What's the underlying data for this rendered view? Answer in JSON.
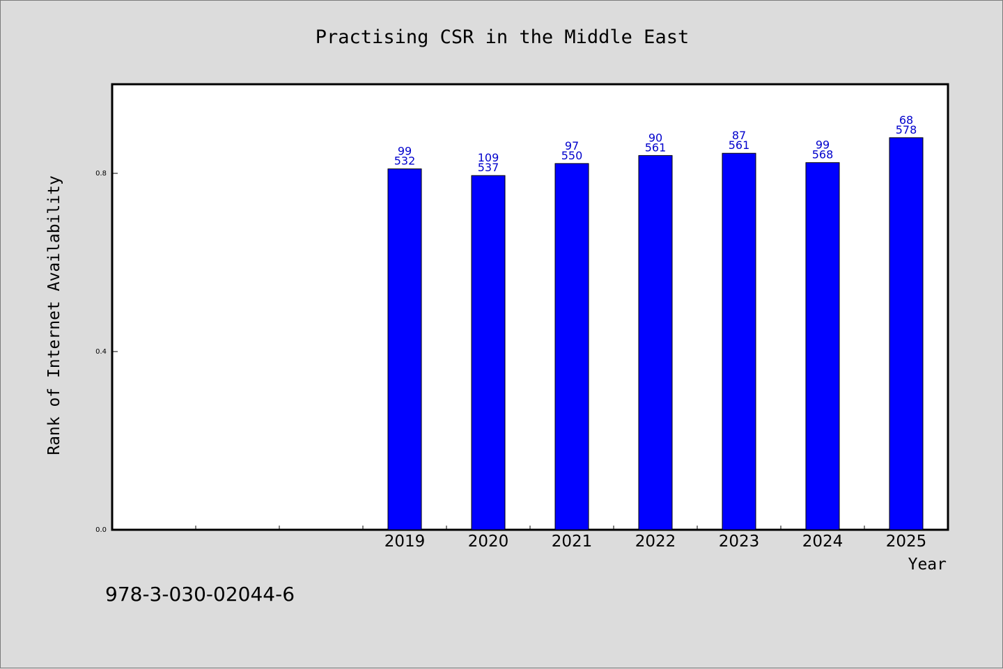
{
  "chart_data": {
    "type": "bar",
    "title": "Practising CSR in the Middle East",
    "xlabel": "Year",
    "ylabel": "Rank of Internet Availability",
    "categories": [
      "",
      "",
      "",
      "2019",
      "2020",
      "2021",
      "2022",
      "2023",
      "2024",
      "2025"
    ],
    "values": [
      null,
      null,
      null,
      0.81,
      0.795,
      0.822,
      0.84,
      0.845,
      0.824,
      0.88
    ],
    "data_labels": [
      null,
      null,
      null,
      [
        "99",
        "532"
      ],
      [
        "109",
        "537"
      ],
      [
        "97",
        "550"
      ],
      [
        "90",
        "561"
      ],
      [
        "87",
        "561"
      ],
      [
        "99",
        "568"
      ],
      [
        "68",
        "578"
      ]
    ],
    "yticks": [
      "0.0",
      "0.4",
      "0.8"
    ],
    "ylim": [
      0,
      1.0
    ],
    "grid": false,
    "legend": "none",
    "bar_color": "#0000ff",
    "label_color": "#0000cc"
  },
  "footer": {
    "text": "978-3-030-02044-6"
  }
}
